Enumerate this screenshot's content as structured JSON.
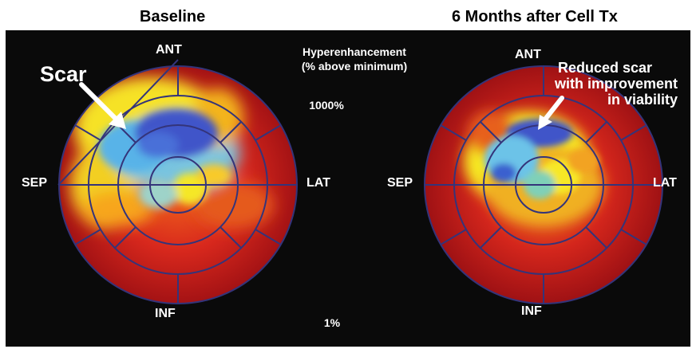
{
  "titles": {
    "left": "Baseline",
    "right": "6 Months after Cell Tx"
  },
  "orientation": {
    "ant": "ANT",
    "inf": "INF",
    "sep": "SEP",
    "lat": "LAT"
  },
  "legend": {
    "line1": "Hyperenhancement",
    "line2": "(% above minimum)",
    "max": "1000%",
    "min": "1%"
  },
  "annotations": {
    "scar": "Scar",
    "reduced_line1": "Reduced scar",
    "reduced_line2": "with improvement",
    "reduced_line3": "in viability"
  },
  "colors": {
    "background": "#0a0a0a",
    "scar_blue": "#3f54c9",
    "light_blue": "#5fb6e6",
    "yellow": "#f6ea24",
    "orange": "#f48a1c",
    "red": "#d2261c",
    "dark_red": "#9e1114",
    "segment_lines": "#34347a"
  }
}
